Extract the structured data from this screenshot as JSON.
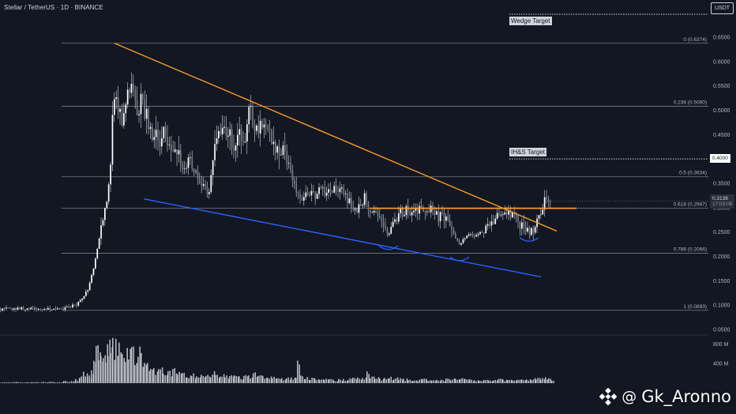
{
  "header": {
    "title": "Stellar / TetherUS · 1D · BINANCE",
    "currency": "USDT"
  },
  "chart_data": {
    "type": "candlestick",
    "title": "Stellar / TetherUS · 1D · BINANCE",
    "ylabel": "USDT",
    "ylim": [
      0.05,
      0.65
    ],
    "price_ticks": [
      "0.6500",
      "0.6000",
      "0.5500",
      "0.5000",
      "0.4500",
      "0.4000",
      "0.3500",
      "0.3000",
      "0.2500",
      "0.2000",
      "0.1500",
      "0.1000",
      "0.0500"
    ],
    "volume_ticks": [
      "800 M",
      "400 M"
    ],
    "fib_levels": [
      {
        "label": "0 (0.6374)",
        "value": 0.6374
      },
      {
        "label": "0.236 (0.5080)",
        "value": 0.508
      },
      {
        "label": "0.5 (0.3634)",
        "value": 0.3634
      },
      {
        "label": "0.618 (0.2987)",
        "value": 0.2987
      },
      {
        "label": "0.786 (0.2066)",
        "value": 0.2066
      },
      {
        "label": "1 (0.0893)",
        "value": 0.0893
      }
    ],
    "targets": [
      {
        "label": "Wedge Target",
        "value": 0.66
      },
      {
        "label": "IH&S Target",
        "value": 0.4
      }
    ],
    "current_price": {
      "value": "0.3138",
      "countdown": "17:03:08"
    },
    "target_price_label": "0.4000",
    "price_path": [
      [
        0,
        0.092
      ],
      [
        20,
        0.093
      ],
      [
        40,
        0.092
      ],
      [
        60,
        0.091
      ],
      [
        75,
        0.09
      ],
      [
        85,
        0.095
      ],
      [
        95,
        0.1
      ],
      [
        100,
        0.108
      ],
      [
        105,
        0.118
      ],
      [
        110,
        0.13
      ],
      [
        114,
        0.15
      ],
      [
        118,
        0.18
      ],
      [
        121,
        0.205
      ],
      [
        124,
        0.23
      ],
      [
        127,
        0.26
      ],
      [
        130,
        0.28
      ],
      [
        133,
        0.3
      ],
      [
        136,
        0.33
      ],
      [
        139,
        0.37
      ],
      [
        141,
        0.47
      ],
      [
        143,
        0.52
      ],
      [
        146,
        0.55
      ],
      [
        148,
        0.49
      ],
      [
        151,
        0.52
      ],
      [
        154,
        0.47
      ],
      [
        157,
        0.5
      ],
      [
        160,
        0.56
      ],
      [
        163,
        0.53
      ],
      [
        166,
        0.55
      ],
      [
        170,
        0.51
      ],
      [
        174,
        0.49
      ],
      [
        178,
        0.53
      ],
      [
        182,
        0.5
      ],
      [
        186,
        0.48
      ],
      [
        190,
        0.46
      ],
      [
        194,
        0.44
      ],
      [
        198,
        0.45
      ],
      [
        202,
        0.44
      ],
      [
        206,
        0.45
      ],
      [
        210,
        0.44
      ],
      [
        214,
        0.42
      ],
      [
        218,
        0.43
      ],
      [
        222,
        0.41
      ],
      [
        226,
        0.4
      ],
      [
        230,
        0.38
      ],
      [
        234,
        0.38
      ],
      [
        238,
        0.4
      ],
      [
        242,
        0.39
      ],
      [
        246,
        0.37
      ],
      [
        250,
        0.36
      ],
      [
        254,
        0.35
      ],
      [
        258,
        0.34
      ],
      [
        262,
        0.33
      ],
      [
        266,
        0.35
      ],
      [
        270,
        0.44
      ],
      [
        274,
        0.46
      ],
      [
        278,
        0.45
      ],
      [
        282,
        0.47
      ],
      [
        286,
        0.46
      ],
      [
        290,
        0.45
      ],
      [
        294,
        0.42
      ],
      [
        298,
        0.44
      ],
      [
        302,
        0.46
      ],
      [
        306,
        0.43
      ],
      [
        310,
        0.45
      ],
      [
        314,
        0.5
      ],
      [
        318,
        0.49
      ],
      [
        322,
        0.47
      ],
      [
        326,
        0.46
      ],
      [
        330,
        0.47
      ],
      [
        334,
        0.46
      ],
      [
        338,
        0.45
      ],
      [
        342,
        0.44
      ],
      [
        346,
        0.43
      ],
      [
        350,
        0.42
      ],
      [
        354,
        0.41
      ],
      [
        358,
        0.42
      ],
      [
        362,
        0.4
      ],
      [
        366,
        0.38
      ],
      [
        370,
        0.36
      ],
      [
        374,
        0.34
      ],
      [
        378,
        0.33
      ],
      [
        382,
        0.32
      ],
      [
        386,
        0.33
      ],
      [
        390,
        0.32
      ],
      [
        394,
        0.33
      ],
      [
        398,
        0.32
      ],
      [
        402,
        0.33
      ],
      [
        406,
        0.34
      ],
      [
        410,
        0.33
      ],
      [
        414,
        0.34
      ],
      [
        418,
        0.33
      ],
      [
        422,
        0.34
      ],
      [
        426,
        0.33
      ],
      [
        430,
        0.34
      ],
      [
        434,
        0.33
      ],
      [
        438,
        0.32
      ],
      [
        442,
        0.31
      ],
      [
        446,
        0.3
      ],
      [
        450,
        0.29
      ],
      [
        454,
        0.3
      ],
      [
        458,
        0.31
      ],
      [
        462,
        0.33
      ],
      [
        466,
        0.3
      ],
      [
        470,
        0.29
      ],
      [
        474,
        0.3
      ],
      [
        478,
        0.29
      ],
      [
        482,
        0.28
      ],
      [
        486,
        0.26
      ],
      [
        490,
        0.245
      ],
      [
        494,
        0.25
      ],
      [
        498,
        0.27
      ],
      [
        502,
        0.28
      ],
      [
        506,
        0.29
      ],
      [
        510,
        0.29
      ],
      [
        514,
        0.3
      ],
      [
        518,
        0.29
      ],
      [
        522,
        0.3
      ],
      [
        526,
        0.29
      ],
      [
        530,
        0.3
      ],
      [
        534,
        0.29
      ],
      [
        538,
        0.3
      ],
      [
        542,
        0.29
      ],
      [
        546,
        0.3
      ],
      [
        550,
        0.29
      ],
      [
        554,
        0.28
      ],
      [
        558,
        0.29
      ],
      [
        562,
        0.28
      ],
      [
        566,
        0.27
      ],
      [
        570,
        0.26
      ],
      [
        574,
        0.245
      ],
      [
        578,
        0.23
      ],
      [
        582,
        0.225
      ],
      [
        586,
        0.235
      ],
      [
        590,
        0.24
      ],
      [
        594,
        0.245
      ],
      [
        598,
        0.24
      ],
      [
        602,
        0.245
      ],
      [
        606,
        0.25
      ],
      [
        610,
        0.25
      ],
      [
        614,
        0.255
      ],
      [
        618,
        0.26
      ],
      [
        622,
        0.265
      ],
      [
        626,
        0.28
      ],
      [
        630,
        0.29
      ],
      [
        634,
        0.29
      ],
      [
        638,
        0.3
      ],
      [
        642,
        0.29
      ],
      [
        646,
        0.28
      ],
      [
        650,
        0.285
      ],
      [
        654,
        0.27
      ],
      [
        658,
        0.265
      ],
      [
        662,
        0.26
      ],
      [
        666,
        0.255
      ],
      [
        670,
        0.25
      ],
      [
        674,
        0.255
      ],
      [
        678,
        0.27
      ],
      [
        682,
        0.28
      ],
      [
        686,
        0.3
      ],
      [
        690,
        0.32
      ],
      [
        694,
        0.31
      ],
      [
        698,
        0.315
      ]
    ],
    "wedge_upper": [
      [
        0.6374,
        145
      ],
      [
        0.252,
        705
      ]
    ],
    "wedge_lower": [
      [
        0.318,
        182
      ],
      [
        0.158,
        685
      ]
    ],
    "neckline": {
      "value": 0.2987,
      "x_start": 468,
      "x_end": 730
    },
    "volume_profile": [
      [
        0,
        20
      ],
      [
        20,
        22
      ],
      [
        40,
        20
      ],
      [
        60,
        25
      ],
      [
        80,
        40
      ],
      [
        95,
        80
      ],
      [
        100,
        150
      ],
      [
        105,
        200
      ],
      [
        110,
        180
      ],
      [
        115,
        300
      ],
      [
        118,
        550
      ],
      [
        121,
        700
      ],
      [
        124,
        850
      ],
      [
        127,
        800
      ],
      [
        130,
        600
      ],
      [
        133,
        750
      ],
      [
        136,
        850
      ],
      [
        139,
        900
      ],
      [
        142,
        850
      ],
      [
        146,
        800
      ],
      [
        150,
        700
      ],
      [
        154,
        650
      ],
      [
        158,
        600
      ],
      [
        162,
        800
      ],
      [
        166,
        700
      ],
      [
        170,
        650
      ],
      [
        174,
        600
      ],
      [
        178,
        500
      ],
      [
        182,
        400
      ],
      [
        186,
        350
      ],
      [
        190,
        300
      ],
      [
        194,
        250
      ],
      [
        200,
        300
      ],
      [
        206,
        260
      ],
      [
        212,
        220
      ],
      [
        218,
        250
      ],
      [
        224,
        200
      ],
      [
        230,
        180
      ],
      [
        236,
        170
      ],
      [
        242,
        160
      ],
      [
        248,
        150
      ],
      [
        254,
        140
      ],
      [
        260,
        150
      ],
      [
        266,
        200
      ],
      [
        272,
        180
      ],
      [
        278,
        160
      ],
      [
        284,
        150
      ],
      [
        290,
        140
      ],
      [
        296,
        130
      ],
      [
        302,
        120
      ],
      [
        308,
        140
      ],
      [
        314,
        160
      ],
      [
        320,
        180
      ],
      [
        326,
        140
      ],
      [
        332,
        130
      ],
      [
        338,
        120
      ],
      [
        344,
        110
      ],
      [
        350,
        100
      ],
      [
        356,
        90
      ],
      [
        362,
        110
      ],
      [
        368,
        100
      ],
      [
        374,
        140
      ],
      [
        376,
        550
      ],
      [
        380,
        130
      ],
      [
        386,
        110
      ],
      [
        392,
        90
      ],
      [
        398,
        80
      ],
      [
        404,
        70
      ],
      [
        410,
        80
      ],
      [
        416,
        70
      ],
      [
        422,
        60
      ],
      [
        428,
        70
      ],
      [
        434,
        80
      ],
      [
        440,
        90
      ],
      [
        446,
        100
      ],
      [
        452,
        110
      ],
      [
        458,
        130
      ],
      [
        464,
        200
      ],
      [
        468,
        120
      ],
      [
        474,
        100
      ],
      [
        480,
        90
      ],
      [
        486,
        100
      ],
      [
        492,
        110
      ],
      [
        498,
        100
      ],
      [
        504,
        90
      ],
      [
        510,
        80
      ],
      [
        516,
        70
      ],
      [
        522,
        60
      ],
      [
        528,
        70
      ],
      [
        534,
        80
      ],
      [
        540,
        70
      ],
      [
        546,
        60
      ],
      [
        552,
        60
      ],
      [
        558,
        70
      ],
      [
        564,
        80
      ],
      [
        570,
        90
      ],
      [
        576,
        100
      ],
      [
        582,
        90
      ],
      [
        588,
        80
      ],
      [
        594,
        70
      ],
      [
        600,
        60
      ],
      [
        606,
        60
      ],
      [
        612,
        60
      ],
      [
        618,
        60
      ],
      [
        624,
        70
      ],
      [
        630,
        80
      ],
      [
        636,
        70
      ],
      [
        642,
        60
      ],
      [
        648,
        60
      ],
      [
        654,
        60
      ],
      [
        660,
        70
      ],
      [
        666,
        80
      ],
      [
        672,
        90
      ],
      [
        678,
        100
      ],
      [
        684,
        110
      ],
      [
        690,
        130
      ],
      [
        694,
        90
      ],
      [
        698,
        60
      ]
    ],
    "volume_ylim": [
      0,
      1000
    ],
    "annotations": [
      "Wedge Target",
      "IH&S Target"
    ]
  },
  "watermark": {
    "text": "Gk_Aronno",
    "at": "@"
  }
}
